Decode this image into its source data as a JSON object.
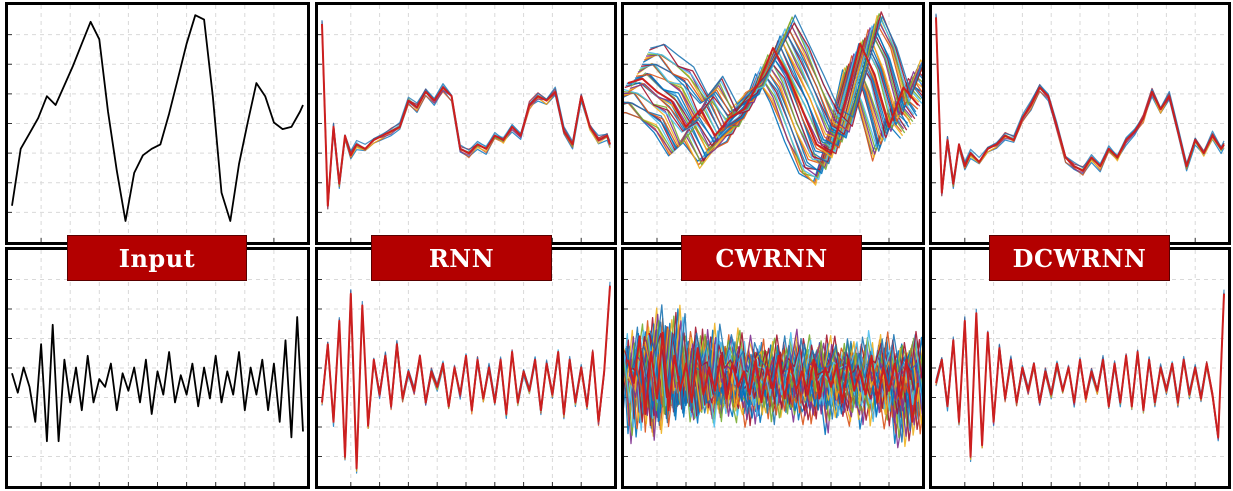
{
  "labels": {
    "input": "Input",
    "rnn": "RNN",
    "cwrnn": "CWRNN",
    "dcwrnn": "DCWRNN"
  },
  "colors": {
    "input_line": "#000000",
    "prediction_line": "#cc1f1f",
    "label_bg": "#b30000",
    "label_text": "#ffffff",
    "grid": "#d9d9d9",
    "multi_series": [
      "#0072bd",
      "#d95319",
      "#edb120",
      "#7e2f8e",
      "#77ac30",
      "#4dbeee",
      "#a2142f",
      "#1f77b4"
    ]
  },
  "chart_data": [
    {
      "type": "line",
      "panel": "input-top",
      "title": "",
      "xlabel": "",
      "ylabel": "",
      "x": [
        0,
        3,
        6,
        9,
        12,
        15,
        18,
        21,
        24,
        27,
        30,
        33,
        36,
        39,
        42,
        45,
        48,
        51,
        54,
        57,
        60,
        63,
        66,
        69,
        72,
        75,
        78,
        81,
        84,
        87,
        90,
        93,
        96,
        99,
        100
      ],
      "series": [
        {
          "values": [
            0.12,
            0.38,
            0.45,
            0.52,
            0.62,
            0.58,
            0.67,
            0.76,
            0.86,
            0.96,
            0.88,
            0.55,
            0.28,
            0.05,
            0.27,
            0.35,
            0.38,
            0.4,
            0.54,
            0.7,
            0.86,
            0.99,
            0.97,
            0.62,
            0.18,
            0.05,
            0.31,
            0.5,
            0.68,
            0.62,
            0.5,
            0.47,
            0.48,
            0.55,
            0.58
          ]
        }
      ]
    },
    {
      "type": "line",
      "panel": "rnn-top",
      "title": "",
      "xlabel": "",
      "ylabel": "",
      "x": [
        0,
        2,
        4,
        6,
        8,
        10,
        12,
        15,
        18,
        21,
        24,
        27,
        30,
        33,
        36,
        39,
        42,
        45,
        48,
        51,
        54,
        57,
        60,
        63,
        66,
        69,
        72,
        75,
        78,
        81,
        84,
        87,
        90,
        93,
        96,
        99,
        100
      ],
      "series": [
        {
          "values": [
            0.95,
            0.12,
            0.48,
            0.22,
            0.44,
            0.35,
            0.4,
            0.38,
            0.42,
            0.44,
            0.46,
            0.48,
            0.6,
            0.57,
            0.64,
            0.6,
            0.66,
            0.62,
            0.38,
            0.36,
            0.4,
            0.38,
            0.44,
            0.42,
            0.48,
            0.44,
            0.58,
            0.62,
            0.6,
            0.64,
            0.46,
            0.4,
            0.62,
            0.48,
            0.42,
            0.44,
            0.4
          ]
        }
      ]
    },
    {
      "type": "line",
      "panel": "cwrnn-top",
      "title": "",
      "xlabel": "",
      "ylabel": "",
      "x": [
        0,
        5,
        10,
        15,
        20,
        25,
        30,
        35,
        40,
        45,
        50,
        55,
        60,
        65,
        70,
        75,
        80,
        85,
        90,
        95,
        100
      ],
      "series": [
        {
          "values": [
            0.68,
            0.7,
            0.64,
            0.6,
            0.48,
            0.56,
            0.44,
            0.52,
            0.56,
            0.68,
            0.84,
            0.72,
            0.56,
            0.4,
            0.36,
            0.6,
            0.86,
            0.72,
            0.48,
            0.66,
            0.58
          ]
        }
      ]
    },
    {
      "type": "line",
      "panel": "dcwrnn-top",
      "title": "",
      "xlabel": "",
      "ylabel": "",
      "x": [
        0,
        2,
        4,
        6,
        8,
        10,
        12,
        15,
        18,
        21,
        24,
        27,
        30,
        33,
        36,
        39,
        42,
        45,
        48,
        51,
        54,
        57,
        60,
        63,
        66,
        69,
        72,
        75,
        78,
        81,
        84,
        87,
        90,
        93,
        96,
        99,
        100
      ],
      "series": [
        {
          "values": [
            0.98,
            0.18,
            0.42,
            0.22,
            0.4,
            0.3,
            0.36,
            0.32,
            0.38,
            0.4,
            0.44,
            0.42,
            0.52,
            0.58,
            0.66,
            0.62,
            0.48,
            0.34,
            0.3,
            0.28,
            0.34,
            0.3,
            0.38,
            0.34,
            0.42,
            0.46,
            0.52,
            0.64,
            0.56,
            0.62,
            0.46,
            0.3,
            0.42,
            0.36,
            0.44,
            0.38,
            0.4
          ]
        }
      ]
    },
    {
      "type": "line",
      "panel": "input-bottom",
      "title": "",
      "xlabel": "",
      "ylabel": "",
      "x": [
        0,
        2,
        4,
        6,
        8,
        10,
        12,
        14,
        16,
        18,
        20,
        22,
        24,
        26,
        28,
        30,
        32,
        34,
        36,
        38,
        40,
        42,
        44,
        46,
        48,
        50,
        52,
        54,
        56,
        58,
        60,
        62,
        64,
        66,
        68,
        70,
        72,
        74,
        76,
        78,
        80,
        82,
        84,
        86,
        88,
        90,
        92,
        94,
        96,
        98,
        100
      ],
      "series": [
        {
          "values": [
            0.55,
            0.45,
            0.58,
            0.48,
            0.3,
            0.7,
            0.2,
            0.8,
            0.2,
            0.62,
            0.4,
            0.58,
            0.36,
            0.64,
            0.4,
            0.52,
            0.48,
            0.6,
            0.36,
            0.55,
            0.46,
            0.58,
            0.4,
            0.62,
            0.34,
            0.56,
            0.44,
            0.66,
            0.4,
            0.54,
            0.44,
            0.6,
            0.38,
            0.58,
            0.42,
            0.64,
            0.4,
            0.56,
            0.44,
            0.66,
            0.36,
            0.58,
            0.44,
            0.62,
            0.36,
            0.6,
            0.3,
            0.72,
            0.22,
            0.84,
            0.25
          ]
        }
      ]
    },
    {
      "type": "line",
      "panel": "rnn-bottom",
      "title": "",
      "xlabel": "",
      "ylabel": "",
      "x": [
        0,
        2,
        4,
        6,
        8,
        10,
        12,
        14,
        16,
        18,
        20,
        22,
        24,
        26,
        28,
        30,
        32,
        34,
        36,
        38,
        40,
        42,
        44,
        46,
        48,
        50,
        52,
        54,
        56,
        58,
        60,
        62,
        64,
        66,
        68,
        70,
        72,
        74,
        76,
        78,
        80,
        82,
        84,
        86,
        88,
        90,
        92,
        94,
        96,
        98,
        100
      ],
      "series": [
        {
          "values": [
            0.4,
            0.7,
            0.3,
            0.82,
            0.12,
            0.96,
            0.06,
            0.9,
            0.28,
            0.62,
            0.44,
            0.64,
            0.38,
            0.7,
            0.42,
            0.56,
            0.46,
            0.64,
            0.4,
            0.56,
            0.48,
            0.6,
            0.38,
            0.58,
            0.44,
            0.64,
            0.36,
            0.62,
            0.42,
            0.58,
            0.4,
            0.62,
            0.34,
            0.66,
            0.4,
            0.56,
            0.46,
            0.62,
            0.36,
            0.6,
            0.44,
            0.66,
            0.34,
            0.62,
            0.4,
            0.58,
            0.38,
            0.66,
            0.3,
            0.56,
            1.0
          ]
        }
      ]
    },
    {
      "type": "line",
      "panel": "cwrnn-bottom",
      "title": "",
      "xlabel": "",
      "ylabel": "",
      "x": [
        0,
        2,
        4,
        6,
        8,
        10,
        12,
        14,
        16,
        18,
        20,
        22,
        24,
        26,
        28,
        30,
        32,
        34,
        36,
        38,
        40,
        42,
        44,
        46,
        48,
        50,
        52,
        54,
        56,
        58,
        60,
        62,
        64,
        66,
        68,
        70,
        72,
        74,
        76,
        78,
        80,
        82,
        84,
        86,
        88,
        90,
        92,
        94,
        96,
        98,
        100
      ],
      "series": [
        {
          "values": [
            0.62,
            0.5,
            0.74,
            0.34,
            0.66,
            0.42,
            0.76,
            0.36,
            0.64,
            0.46,
            0.6,
            0.4,
            0.68,
            0.44,
            0.58,
            0.46,
            0.64,
            0.42,
            0.6,
            0.48,
            0.56,
            0.44,
            0.62,
            0.4,
            0.58,
            0.46,
            0.64,
            0.42,
            0.6,
            0.46,
            0.56,
            0.44,
            0.62,
            0.42,
            0.58,
            0.48,
            0.6,
            0.4,
            0.62,
            0.46,
            0.56,
            0.44,
            0.64,
            0.4,
            0.58,
            0.46,
            0.6,
            0.42,
            0.62,
            0.3,
            0.5
          ]
        }
      ]
    },
    {
      "type": "line",
      "panel": "dcwrnn-bottom",
      "title": "",
      "xlabel": "",
      "ylabel": "",
      "x": [
        0,
        2,
        4,
        6,
        8,
        10,
        12,
        14,
        16,
        18,
        20,
        22,
        24,
        26,
        28,
        30,
        32,
        34,
        36,
        38,
        40,
        42,
        44,
        46,
        48,
        50,
        52,
        54,
        56,
        58,
        60,
        62,
        64,
        66,
        68,
        70,
        72,
        74,
        76,
        78,
        80,
        82,
        84,
        86,
        88,
        90,
        92,
        94,
        96,
        98,
        100
      ],
      "series": [
        {
          "values": [
            0.5,
            0.62,
            0.38,
            0.72,
            0.3,
            0.82,
            0.12,
            0.86,
            0.18,
            0.76,
            0.3,
            0.68,
            0.42,
            0.62,
            0.4,
            0.58,
            0.46,
            0.6,
            0.4,
            0.56,
            0.44,
            0.6,
            0.46,
            0.58,
            0.4,
            0.62,
            0.42,
            0.56,
            0.46,
            0.62,
            0.38,
            0.6,
            0.4,
            0.64,
            0.38,
            0.66,
            0.36,
            0.62,
            0.4,
            0.58,
            0.46,
            0.6,
            0.4,
            0.62,
            0.44,
            0.58,
            0.42,
            0.6,
            0.44,
            0.22,
            0.96
          ]
        }
      ]
    }
  ]
}
